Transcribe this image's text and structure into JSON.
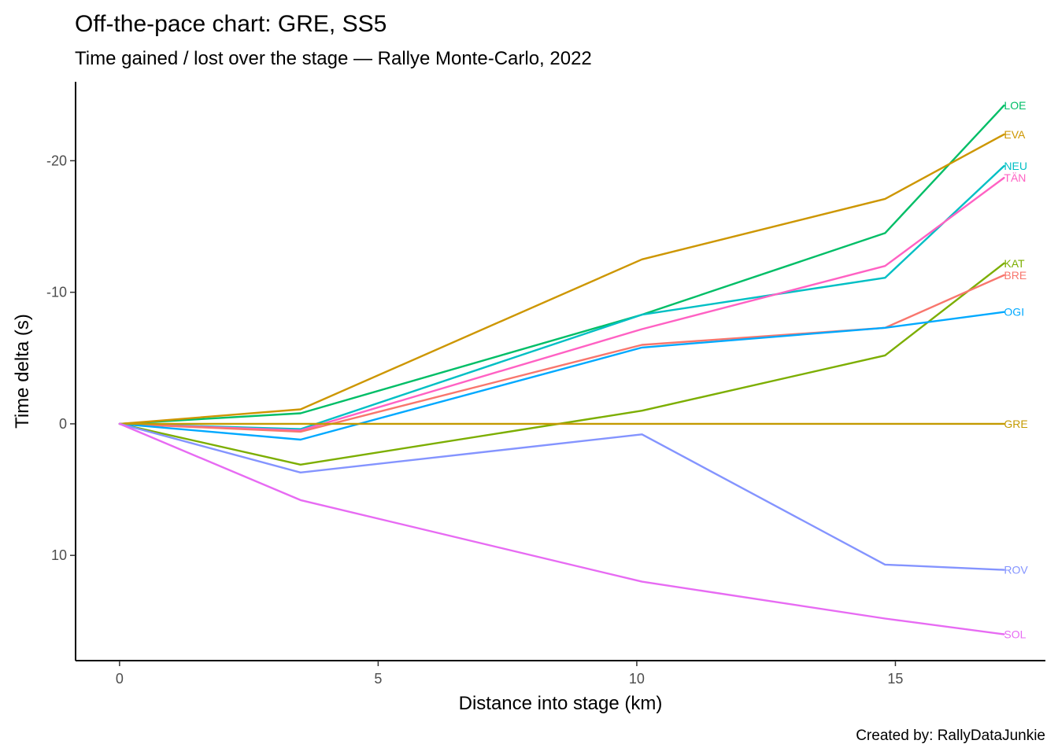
{
  "chart_data": {
    "type": "line",
    "title": "Off-the-pace chart: GRE, SS5",
    "subtitle": "Time gained / lost over the stage — Rallye Monte-Carlo, 2022",
    "xlabel": "Distance into stage (km)",
    "ylabel": "Time delta (s)",
    "caption": "Created by: RallyDataJunkie",
    "x_ticks": [
      0,
      5,
      10,
      15
    ],
    "y_ticks": [
      -20,
      -10,
      0,
      10
    ],
    "xlim": [
      -0.85,
      17.9
    ],
    "ylim": [
      -26.0,
      18.0
    ],
    "y_reversed": true,
    "grid": false,
    "legend": "none (direct end labels)",
    "x": [
      0,
      3.5,
      10.1,
      14.8,
      17.1
    ],
    "series": [
      {
        "name": "LOE",
        "color": "#00BE67",
        "values": [
          0,
          -0.8,
          -8.3,
          -14.5,
          -24.2
        ]
      },
      {
        "name": "EVA",
        "color": "#CD9600",
        "values": [
          0,
          -1.1,
          -12.5,
          -17.1,
          -22.0
        ]
      },
      {
        "name": "NEU",
        "color": "#00BFC4",
        "values": [
          0,
          0.4,
          -8.3,
          -11.1,
          -19.6
        ]
      },
      {
        "name": "TÄN",
        "color": "#FF61C3",
        "values": [
          0,
          0.5,
          -7.2,
          -12.0,
          -18.7
        ]
      },
      {
        "name": "KAT",
        "color": "#7CAE00",
        "values": [
          0,
          3.1,
          -1.0,
          -5.2,
          -12.2
        ]
      },
      {
        "name": "BRE",
        "color": "#F8766D",
        "values": [
          0,
          0.6,
          -6.0,
          -7.3,
          -11.3
        ]
      },
      {
        "name": "OGI",
        "color": "#00A9FF",
        "values": [
          0,
          1.2,
          -5.8,
          -7.3,
          -8.5
        ]
      },
      {
        "name": "GRE",
        "color": "#C49A00",
        "values": [
          0,
          0,
          0,
          0,
          0
        ]
      },
      {
        "name": "ROV",
        "color": "#8494FF",
        "values": [
          0,
          3.7,
          0.8,
          10.7,
          11.1
        ]
      },
      {
        "name": "SOL",
        "color": "#E76BF3",
        "values": [
          0,
          5.8,
          12.0,
          14.8,
          16.0
        ]
      }
    ]
  }
}
